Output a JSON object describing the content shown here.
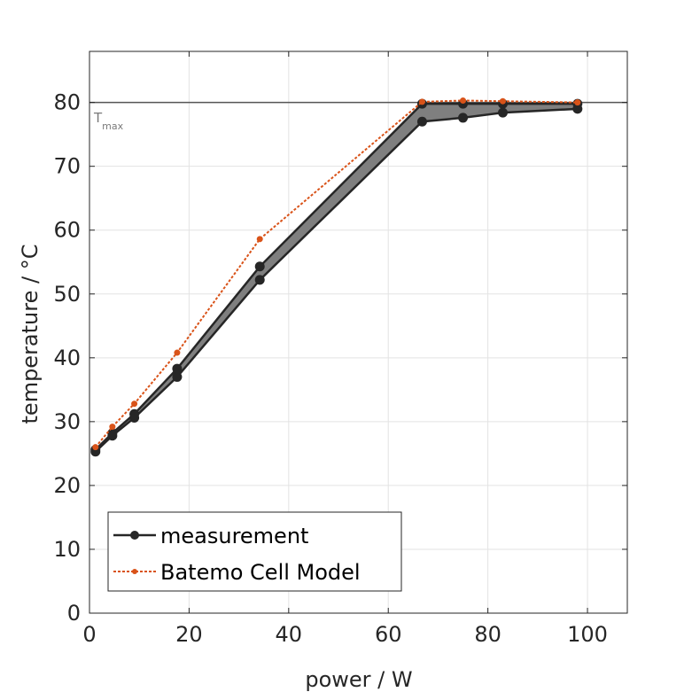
{
  "chart_data": {
    "type": "line",
    "xlabel": "power / W",
    "ylabel": "temperature / °C",
    "xlim": [
      0,
      108
    ],
    "ylim": [
      0,
      88
    ],
    "xticks": [
      0,
      20,
      40,
      60,
      80,
      100
    ],
    "yticks": [
      0,
      10,
      20,
      30,
      40,
      50,
      60,
      70,
      80
    ],
    "grid": true,
    "legend_position": "bottom-left",
    "threshold": {
      "value": 80,
      "label_main": "T",
      "label_sub": "max",
      "color": "#555555"
    },
    "band": {
      "color": "#7f7f7f"
    },
    "series": [
      {
        "name": "measurement",
        "color": "#262626",
        "style": "solid",
        "x": [
          1.2,
          4.6,
          9.0,
          17.6,
          34.2,
          66.8,
          75.0,
          83.0,
          98.0
        ],
        "lower": [
          25.3,
          27.8,
          30.6,
          37.0,
          52.2,
          77.0,
          77.6,
          78.4,
          79.0
        ],
        "upper": [
          25.6,
          28.2,
          31.2,
          38.3,
          54.3,
          79.8,
          79.8,
          79.8,
          79.8
        ]
      },
      {
        "name": "Batemo Cell Model",
        "color": "#d95319",
        "style": "dotted",
        "x": [
          1.2,
          4.6,
          9.0,
          17.6,
          34.2,
          66.8,
          75.0,
          83.0,
          98.0
        ],
        "y": [
          26.0,
          29.2,
          32.8,
          40.8,
          58.6,
          80.1,
          80.3,
          80.2,
          80.0
        ]
      }
    ]
  }
}
